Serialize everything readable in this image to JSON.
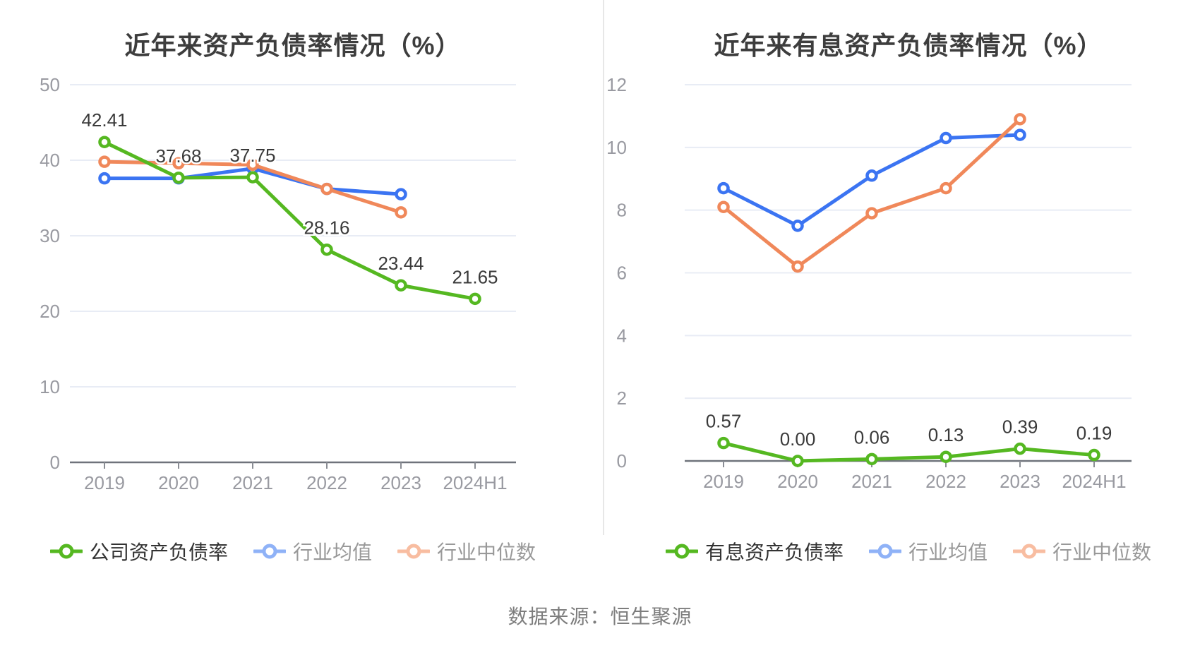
{
  "page": {
    "source_note": "数据来源：恒生聚源"
  },
  "chart_data": [
    {
      "type": "line",
      "title": "近年来资产负债率情况（%）",
      "categories": [
        "2019",
        "2020",
        "2021",
        "2022",
        "2023",
        "2024H1"
      ],
      "y_ticks": [
        0,
        10,
        20,
        30,
        40,
        50
      ],
      "ylim": [
        0,
        50
      ],
      "grid": true,
      "legend_position": "bottom",
      "series": [
        {
          "name": "公司资产负债率",
          "color": "#55b821",
          "legend_marker_color": "#55b821",
          "legend_text_color": "#333333",
          "show_labels": true,
          "values": [
            42.41,
            37.68,
            37.75,
            28.16,
            23.44,
            21.65
          ],
          "labels": [
            "42.41",
            "37.68",
            "37.75",
            "28.16",
            "23.44",
            "21.65"
          ]
        },
        {
          "name": "行业均值",
          "color": "#3b74f2",
          "legend_marker_color": "#8fb2f7",
          "legend_text_color": "#999999",
          "show_labels": false,
          "values": [
            37.6,
            37.6,
            38.9,
            36.2,
            35.5,
            null
          ],
          "labels": []
        },
        {
          "name": "行业中位数",
          "color": "#f0885a",
          "legend_marker_color": "#f8bda1",
          "legend_text_color": "#999999",
          "show_labels": false,
          "values": [
            39.8,
            39.6,
            39.4,
            36.2,
            33.1,
            null
          ],
          "labels": []
        }
      ]
    },
    {
      "type": "line",
      "title": "近年来有息资产负债率情况（%）",
      "categories": [
        "2019",
        "2020",
        "2021",
        "2022",
        "2023",
        "2024H1"
      ],
      "y_ticks": [
        0,
        2,
        4,
        6,
        8,
        10,
        12
      ],
      "ylim": [
        0,
        12
      ],
      "grid": true,
      "legend_position": "bottom",
      "series": [
        {
          "name": "有息资产负债率",
          "color": "#55b821",
          "legend_marker_color": "#55b821",
          "legend_text_color": "#333333",
          "show_labels": true,
          "values": [
            0.57,
            0.0,
            0.06,
            0.13,
            0.39,
            0.19
          ],
          "labels": [
            "0.57",
            "0.00",
            "0.06",
            "0.13",
            "0.39",
            "0.19"
          ]
        },
        {
          "name": "行业均值",
          "color": "#3b74f2",
          "legend_marker_color": "#8fb2f7",
          "legend_text_color": "#999999",
          "show_labels": false,
          "values": [
            8.7,
            7.5,
            9.1,
            10.3,
            10.4,
            null
          ],
          "labels": []
        },
        {
          "name": "行业中位数",
          "color": "#f0885a",
          "legend_marker_color": "#f8bda1",
          "legend_text_color": "#999999",
          "show_labels": false,
          "values": [
            8.1,
            6.2,
            7.9,
            8.7,
            10.9,
            null
          ],
          "labels": []
        }
      ]
    }
  ]
}
